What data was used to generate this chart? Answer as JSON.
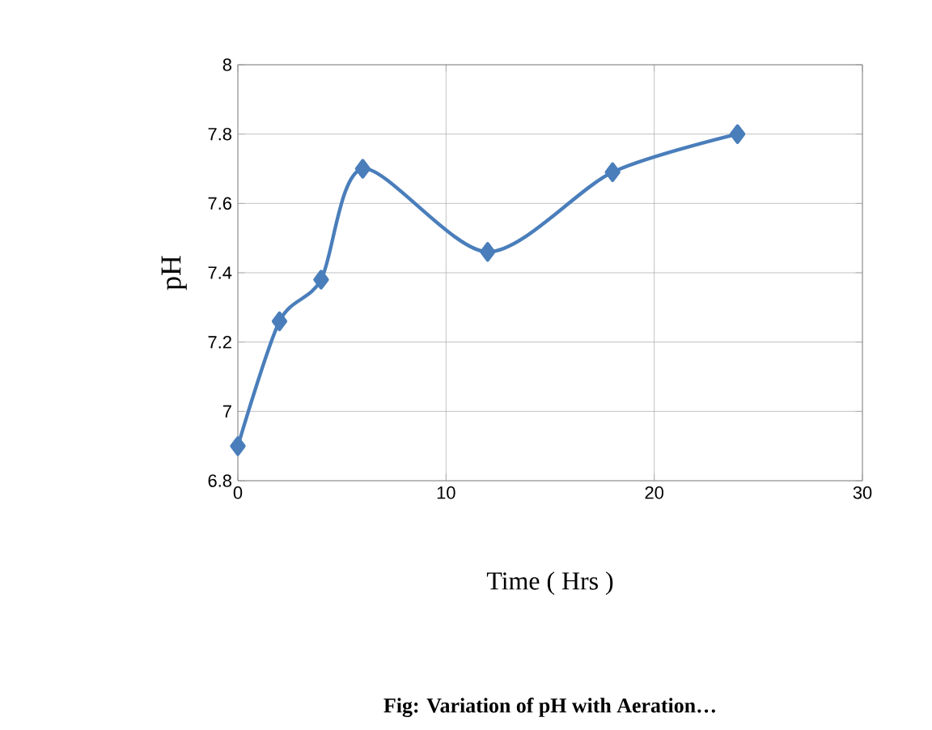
{
  "chart_data": {
    "type": "line",
    "xlabel": "Time ( Hrs )",
    "ylabel": "pH",
    "annotations": [
      "Fig: Variation of pH with Aeration…"
    ],
    "x": [
      0,
      2,
      4,
      6,
      12,
      18,
      24
    ],
    "series": [
      {
        "color": "#4a7ebb",
        "values": [
          6.9,
          7.26,
          7.38,
          7.7,
          7.46,
          7.69,
          7.8
        ]
      }
    ],
    "xlim": [
      0,
      30
    ],
    "ylim": [
      6.8,
      8
    ],
    "xticks": [
      0,
      10,
      20,
      30
    ],
    "yticks": [
      6.8,
      7,
      7.2,
      7.4,
      7.6,
      7.8,
      8
    ],
    "grid": true,
    "marker": "diamond",
    "line_style": "solid"
  }
}
